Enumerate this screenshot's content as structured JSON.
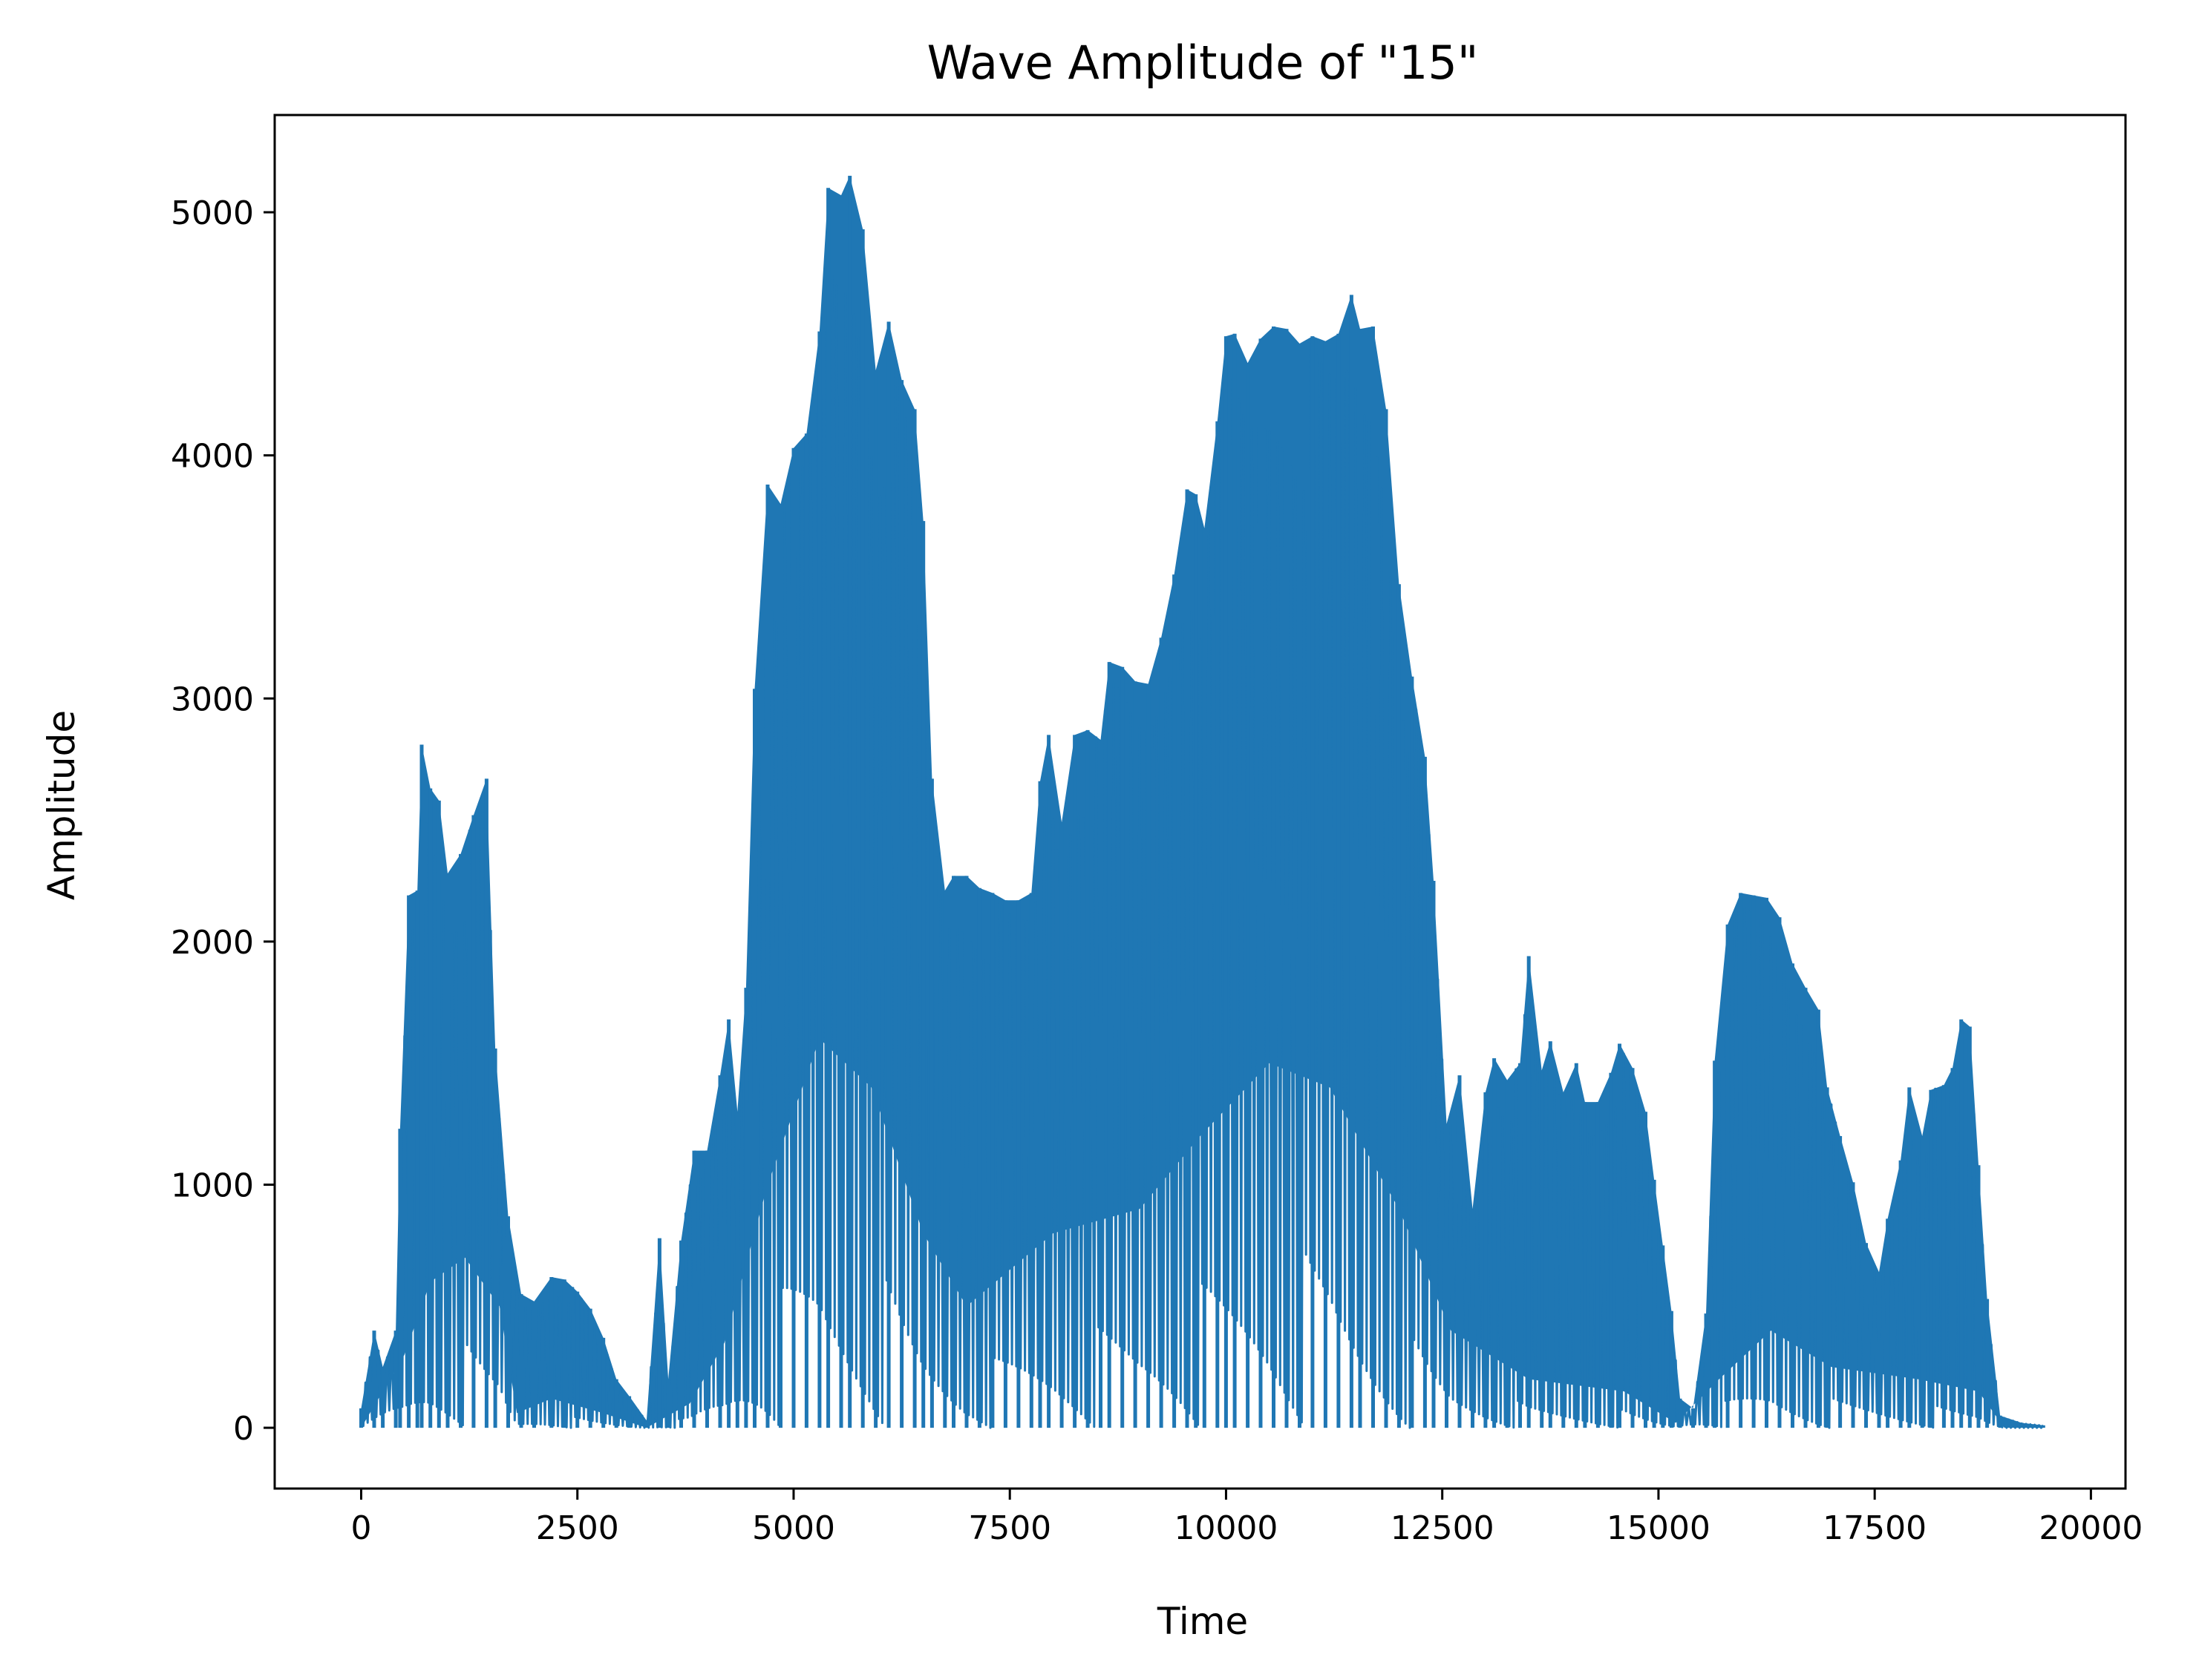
{
  "chart_data": {
    "type": "line",
    "title": "Wave Amplitude of \"15\"",
    "xlabel": "Time",
    "ylabel": "Amplitude",
    "xlim": [
      -1000,
      20400
    ],
    "ylim": [
      -250,
      5400
    ],
    "xticks": [
      0,
      2500,
      5000,
      7500,
      10000,
      12500,
      15000,
      17500,
      20000
    ],
    "yticks": [
      0,
      1000,
      2000,
      3000,
      4000,
      5000
    ],
    "grid": false,
    "series": [
      {
        "color": "#1f77b4",
        "envelope": [
          [
            0,
            80
          ],
          [
            150,
            400
          ],
          [
            250,
            250
          ],
          [
            400,
            400
          ],
          [
            450,
            1230
          ],
          [
            550,
            2190
          ],
          [
            650,
            2210
          ],
          [
            700,
            2810
          ],
          [
            800,
            2630
          ],
          [
            900,
            2580
          ],
          [
            1000,
            2280
          ],
          [
            1150,
            2360
          ],
          [
            1300,
            2520
          ],
          [
            1450,
            2670
          ],
          [
            1550,
            1560
          ],
          [
            1700,
            870
          ],
          [
            1850,
            550
          ],
          [
            2000,
            520
          ],
          [
            2200,
            620
          ],
          [
            2350,
            610
          ],
          [
            2500,
            560
          ],
          [
            2650,
            490
          ],
          [
            2800,
            370
          ],
          [
            2950,
            200
          ],
          [
            3100,
            130
          ],
          [
            3300,
            30
          ],
          [
            3450,
            780
          ],
          [
            3550,
            200
          ],
          [
            3700,
            770
          ],
          [
            3850,
            1140
          ],
          [
            4000,
            1140
          ],
          [
            4150,
            1450
          ],
          [
            4250,
            1680
          ],
          [
            4350,
            1300
          ],
          [
            4450,
            1810
          ],
          [
            4550,
            3040
          ],
          [
            4700,
            3880
          ],
          [
            4850,
            3800
          ],
          [
            5000,
            4030
          ],
          [
            5150,
            4090
          ],
          [
            5300,
            4510
          ],
          [
            5400,
            5100
          ],
          [
            5550,
            5070
          ],
          [
            5650,
            5150
          ],
          [
            5800,
            4930
          ],
          [
            5950,
            4350
          ],
          [
            6100,
            4550
          ],
          [
            6250,
            4310
          ],
          [
            6400,
            4190
          ],
          [
            6500,
            3730
          ],
          [
            6600,
            2670
          ],
          [
            6750,
            2210
          ],
          [
            6850,
            2270
          ],
          [
            7000,
            2270
          ],
          [
            7150,
            2220
          ],
          [
            7300,
            2200
          ],
          [
            7450,
            2170
          ],
          [
            7600,
            2170
          ],
          [
            7750,
            2200
          ],
          [
            7850,
            2660
          ],
          [
            7950,
            2850
          ],
          [
            8100,
            2490
          ],
          [
            8250,
            2850
          ],
          [
            8400,
            2870
          ],
          [
            8550,
            2830
          ],
          [
            8650,
            3150
          ],
          [
            8800,
            3130
          ],
          [
            8950,
            3070
          ],
          [
            9100,
            3060
          ],
          [
            9250,
            3250
          ],
          [
            9400,
            3510
          ],
          [
            9550,
            3860
          ],
          [
            9650,
            3840
          ],
          [
            9750,
            3700
          ],
          [
            9900,
            4140
          ],
          [
            10000,
            4490
          ],
          [
            10100,
            4500
          ],
          [
            10250,
            4380
          ],
          [
            10400,
            4480
          ],
          [
            10550,
            4530
          ],
          [
            10700,
            4520
          ],
          [
            10850,
            4460
          ],
          [
            11000,
            4490
          ],
          [
            11150,
            4470
          ],
          [
            11300,
            4500
          ],
          [
            11450,
            4660
          ],
          [
            11550,
            4520
          ],
          [
            11700,
            4530
          ],
          [
            11850,
            4190
          ],
          [
            12000,
            3470
          ],
          [
            12150,
            3090
          ],
          [
            12300,
            2760
          ],
          [
            12400,
            2250
          ],
          [
            12550,
            1250
          ],
          [
            12700,
            1450
          ],
          [
            12850,
            900
          ],
          [
            13000,
            1380
          ],
          [
            13100,
            1520
          ],
          [
            13250,
            1430
          ],
          [
            13400,
            1500
          ],
          [
            13500,
            1940
          ],
          [
            13650,
            1470
          ],
          [
            13750,
            1590
          ],
          [
            13900,
            1380
          ],
          [
            14050,
            1500
          ],
          [
            14150,
            1340
          ],
          [
            14300,
            1340
          ],
          [
            14450,
            1460
          ],
          [
            14550,
            1580
          ],
          [
            14700,
            1480
          ],
          [
            14850,
            1300
          ],
          [
            14950,
            1020
          ],
          [
            15050,
            750
          ],
          [
            15150,
            480
          ],
          [
            15250,
            120
          ],
          [
            15400,
            80
          ],
          [
            15550,
            470
          ],
          [
            15650,
            1510
          ],
          [
            15800,
            2070
          ],
          [
            15950,
            2200
          ],
          [
            16100,
            2190
          ],
          [
            16250,
            2180
          ],
          [
            16400,
            2100
          ],
          [
            16550,
            1910
          ],
          [
            16700,
            1810
          ],
          [
            16850,
            1720
          ],
          [
            16950,
            1400
          ],
          [
            17100,
            1200
          ],
          [
            17250,
            1010
          ],
          [
            17400,
            760
          ],
          [
            17550,
            640
          ],
          [
            17650,
            860
          ],
          [
            17800,
            1100
          ],
          [
            17900,
            1400
          ],
          [
            18050,
            1200
          ],
          [
            18150,
            1390
          ],
          [
            18300,
            1410
          ],
          [
            18400,
            1480
          ],
          [
            18500,
            1680
          ],
          [
            18600,
            1650
          ],
          [
            18700,
            1080
          ],
          [
            18800,
            530
          ],
          [
            18950,
            50
          ],
          [
            19200,
            20
          ],
          [
            19450,
            10
          ]
        ],
        "floor": [
          [
            0,
            0
          ],
          [
            500,
            300
          ],
          [
            800,
            600
          ],
          [
            1200,
            700
          ],
          [
            1600,
            500
          ],
          [
            1800,
            60
          ],
          [
            2200,
            120
          ],
          [
            2800,
            60
          ],
          [
            3300,
            0
          ],
          [
            3800,
            100
          ],
          [
            4200,
            350
          ],
          [
            4700,
            1000
          ],
          [
            5300,
            1600
          ],
          [
            5900,
            1400
          ],
          [
            6500,
            800
          ],
          [
            7000,
            500
          ],
          [
            8000,
            800
          ],
          [
            9000,
            900
          ],
          [
            9700,
            1200
          ],
          [
            10500,
            1500
          ],
          [
            11200,
            1400
          ],
          [
            12000,
            900
          ],
          [
            12600,
            400
          ],
          [
            13500,
            200
          ],
          [
            14600,
            150
          ],
          [
            15200,
            20
          ],
          [
            15700,
            200
          ],
          [
            16300,
            400
          ],
          [
            17000,
            250
          ],
          [
            18000,
            200
          ],
          [
            18700,
            150
          ],
          [
            19000,
            0
          ],
          [
            19450,
            0
          ]
        ]
      }
    ]
  }
}
